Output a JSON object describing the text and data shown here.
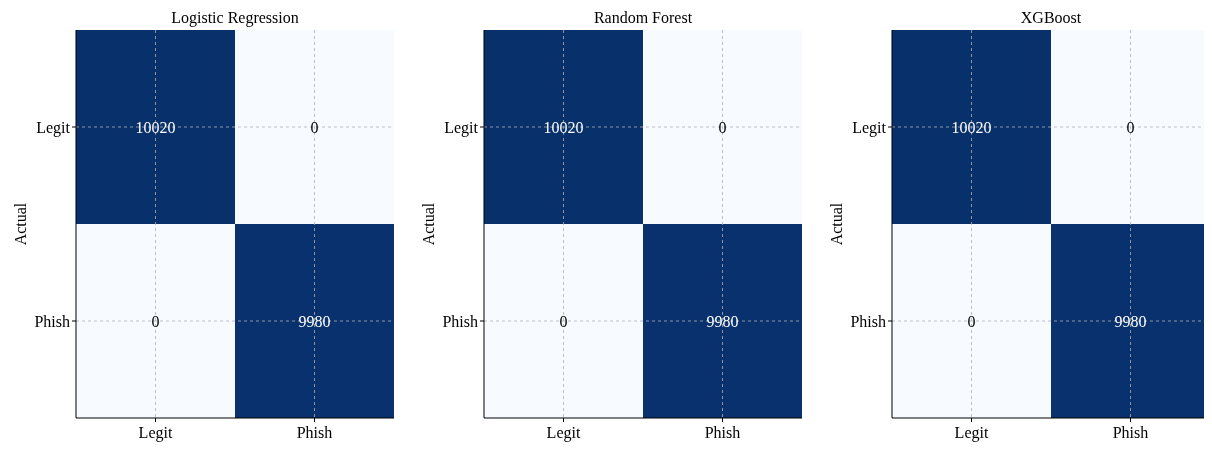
{
  "chart_data": [
    {
      "type": "heatmap",
      "title": "Logistic Regression",
      "ylabel": "Actual",
      "categories": [
        "Legit",
        "Phish"
      ],
      "y_categories": [
        "Legit",
        "Phish"
      ],
      "cells": [
        [
          10020,
          0
        ],
        [
          0,
          9980
        ]
      ],
      "data_labels": true,
      "grid": true
    },
    {
      "type": "heatmap",
      "title": "Random Forest",
      "ylabel": "Actual",
      "categories": [
        "Legit",
        "Phish"
      ],
      "y_categories": [
        "Legit",
        "Phish"
      ],
      "cells": [
        [
          10020,
          0
        ],
        [
          0,
          9980
        ]
      ],
      "data_labels": true,
      "grid": true
    },
    {
      "type": "heatmap",
      "title": "XGBoost",
      "ylabel": "Actual",
      "categories": [
        "Legit",
        "Phish"
      ],
      "y_categories": [
        "Legit",
        "Phish"
      ],
      "cells": [
        [
          10020,
          0
        ],
        [
          0,
          9980
        ]
      ],
      "data_labels": true,
      "grid": true
    }
  ]
}
